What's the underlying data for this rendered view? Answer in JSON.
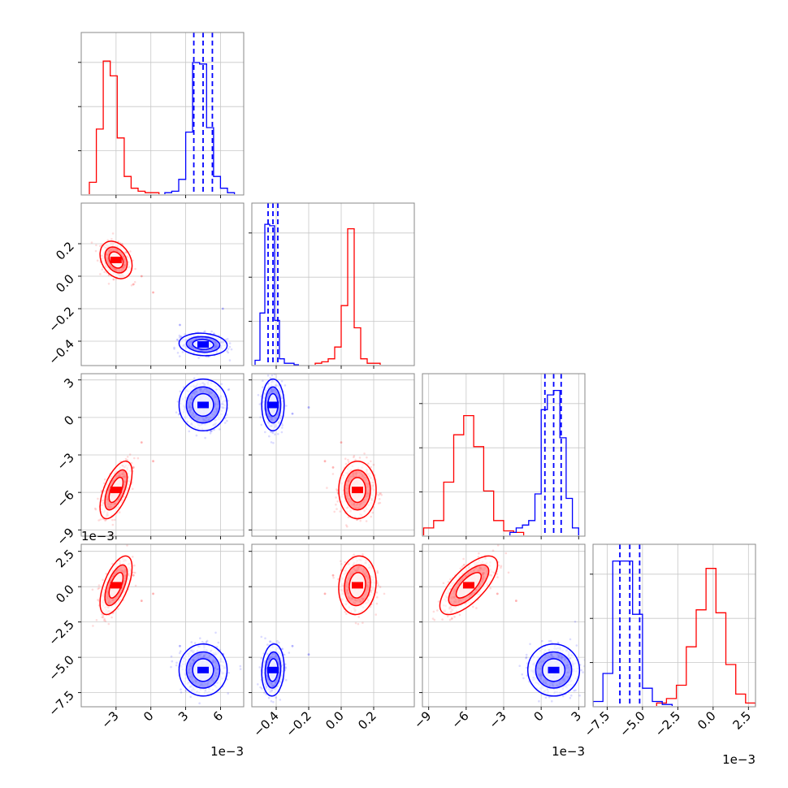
{
  "chart_data": {
    "type": "corner",
    "title": "",
    "grid": true,
    "series_colors": [
      "#ff0000",
      "#0000ff"
    ],
    "offset_label": "1e−3",
    "params": [
      {
        "xlim": [
          -6,
          8
        ],
        "ticks": [
          -3,
          0,
          3,
          6
        ],
        "tick_labels": [
          "−3",
          "0",
          "3",
          "6"
        ],
        "offset": "1e−3"
      },
      {
        "xlim": [
          -0.55,
          0.45
        ],
        "ticks": [
          -0.4,
          -0.2,
          0.0,
          0.2
        ],
        "tick_labels": [
          "−0.4",
          "−0.2",
          "0.0",
          "0.2"
        ],
        "offset": ""
      },
      {
        "xlim": [
          -9.5,
          3.5
        ],
        "ticks": [
          -9,
          -6,
          -3,
          0,
          3
        ],
        "tick_labels": [
          "−9",
          "−6",
          "−3",
          "0",
          "3"
        ],
        "offset": "1e−3"
      },
      {
        "xlim": [
          -8.5,
          3.0
        ],
        "ticks": [
          -7.5,
          -5.0,
          -2.5,
          0.0,
          2.5
        ],
        "tick_labels": [
          "−7.5",
          "−5.0",
          "−2.5",
          "0.0",
          "2.5"
        ],
        "offset": "1e−3"
      }
    ],
    "series": [
      {
        "color": "#ff0000",
        "hists": [
          {
            "edges": [
              -5.3,
              -4.7,
              -4.1,
              -3.5,
              -2.9,
              -2.3,
              -1.7,
              -1.1,
              -0.5,
              0.1,
              0.7
            ],
            "counts": [
              0.08,
              0.44,
              0.9,
              0.8,
              0.38,
              0.12,
              0.04,
              0.02,
              0.01,
              0.01
            ]
          },
          {
            "edges": [
              -0.16,
              -0.12,
              -0.08,
              -0.04,
              0.0,
              0.04,
              0.08,
              0.12,
              0.16,
              0.2,
              0.24
            ],
            "counts": [
              0.01,
              0.02,
              0.04,
              0.12,
              0.4,
              0.92,
              0.25,
              0.04,
              0.01,
              0.01
            ]
          },
          {
            "edges": [
              -9.4,
              -8.6,
              -7.8,
              -7.0,
              -6.2,
              -5.4,
              -4.6,
              -3.8,
              -3.0,
              -2.2,
              -1.4
            ],
            "counts": [
              0.05,
              0.1,
              0.36,
              0.68,
              0.81,
              0.6,
              0.3,
              0.1,
              0.03,
              0.02
            ]
          },
          {
            "edges": [
              -4.0,
              -3.3,
              -2.6,
              -1.9,
              -1.2,
              -0.5,
              0.2,
              0.9,
              1.6,
              2.3,
              3.0
            ],
            "counts": [
              0.02,
              0.05,
              0.14,
              0.4,
              0.65,
              0.93,
              0.63,
              0.28,
              0.08,
              0.02
            ]
          }
        ],
        "mean": [
          -3.0,
          0.1,
          -5.8,
          0.1
        ],
        "sd": [
          0.6,
          0.05,
          1.0,
          0.9
        ],
        "corr": [
          [
            1,
            -0.3,
            0.6,
            0.6
          ],
          [
            -0.3,
            1,
            0,
            0.1
          ],
          [
            0.6,
            0,
            1,
            0.7
          ],
          [
            0.6,
            0.1,
            0.7,
            1
          ]
        ]
      },
      {
        "color": "#0000ff",
        "hists": [
          {
            "edges": [
              1.2,
              1.8,
              2.4,
              3.0,
              3.6,
              4.2,
              4.8,
              5.4,
              6.0,
              6.6,
              7.2
            ],
            "counts": [
              0.01,
              0.02,
              0.1,
              0.42,
              0.89,
              0.88,
              0.45,
              0.12,
              0.04,
              0.01
            ]
          },
          {
            "edges": [
              -0.53,
              -0.5,
              -0.47,
              -0.44,
              -0.41,
              -0.38,
              -0.35,
              -0.32,
              -0.29,
              -0.26
            ],
            "counts": [
              0.03,
              0.35,
              0.95,
              0.94,
              0.3,
              0.04,
              0.01,
              0.01,
              0.0
            ]
          },
          {
            "edges": [
              -2.5,
              -2.0,
              -1.5,
              -1.0,
              -0.5,
              0.0,
              0.5,
              1.0,
              1.5,
              2.0,
              2.5,
              3.0
            ],
            "counts": [
              0.02,
              0.05,
              0.07,
              0.1,
              0.28,
              0.85,
              0.95,
              0.98,
              0.66,
              0.25,
              0.05
            ]
          },
          {
            "edges": [
              -8.5,
              -7.8,
              -7.1,
              -6.4,
              -5.7,
              -5.0,
              -4.3,
              -3.6,
              -2.9
            ],
            "counts": [
              0.03,
              0.22,
              0.98,
              0.98,
              0.62,
              0.12,
              0.03,
              0.01
            ]
          }
        ],
        "mean": [
          4.5,
          -0.42,
          1.0,
          -5.9
        ],
        "sd": [
          0.9,
          0.03,
          0.9,
          0.8
        ],
        "corr": [
          [
            1,
            -0.1,
            0,
            0
          ],
          [
            -0.1,
            1,
            0,
            0.1
          ],
          [
            0,
            0,
            1,
            0
          ],
          [
            0,
            0.1,
            0,
            1
          ]
        ],
        "quantiles": [
          [
            3.7,
            4.5,
            5.3
          ],
          [
            -0.45,
            -0.42,
            -0.39
          ],
          [
            0.3,
            1.0,
            1.6
          ],
          [
            -6.6,
            -5.9,
            -5.2
          ]
        ]
      }
    ],
    "outliers": {
      "red": [
        [
          -0.8,
          0.0,
          -2.0,
          -1.0
        ],
        [
          0.2,
          -0.1,
          -3.5,
          -0.5
        ],
        [
          -1.5,
          -0.05,
          -4.0,
          0.8
        ]
      ],
      "blue": [
        [
          2.5,
          -0.3,
          0.3,
          -4.2
        ],
        [
          6.2,
          -0.2,
          0.8,
          -4.8
        ]
      ]
    }
  }
}
